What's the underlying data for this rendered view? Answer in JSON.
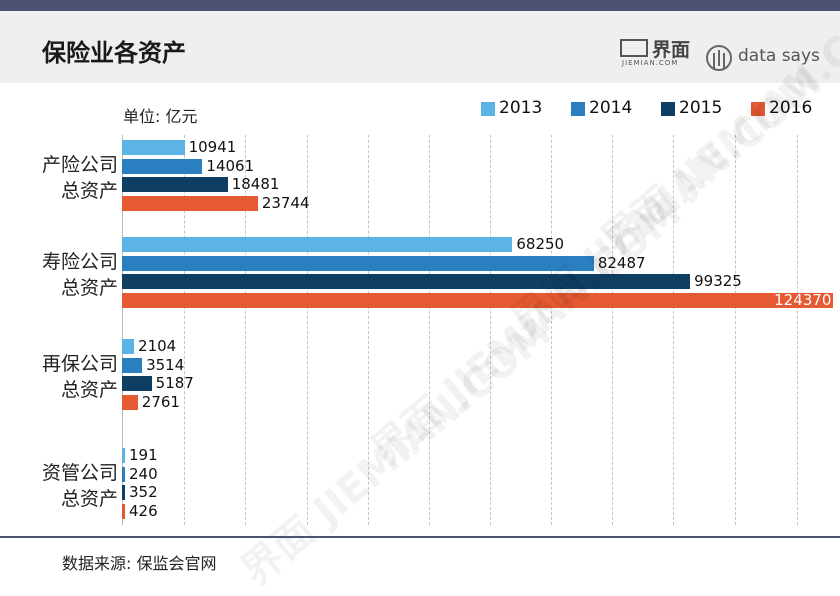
{
  "header": {
    "title": "保险业各资产",
    "brand_jiemian_cn": "界面",
    "brand_jiemian_en": "JIEMIAN.COM",
    "brand_datasays": "data says"
  },
  "colors": {
    "header_strip": "#4d5270",
    "header_bg": "#efefef"
  },
  "chart_data": {
    "type": "bar",
    "orientation": "horizontal",
    "unit_label": "单位: 亿元",
    "categories": [
      "产险公司\n总资产",
      "寿险公司\n总资产",
      "再保公司\n总资产",
      "资管公司\n总资产"
    ],
    "category_lines": [
      [
        "产险公司",
        "总资产"
      ],
      [
        "寿险公司",
        "总资产"
      ],
      [
        "再保公司",
        "总资产"
      ],
      [
        "资管公司",
        "总资产"
      ]
    ],
    "series": [
      {
        "name": "2013",
        "color": "#5bb3e6",
        "values": [
          10941,
          68250,
          2104,
          191
        ]
      },
      {
        "name": "2014",
        "color": "#2a7fc0",
        "values": [
          14061,
          82487,
          3514,
          240
        ]
      },
      {
        "name": "2015",
        "color": "#0e3e62",
        "values": [
          18481,
          99325,
          5187,
          352
        ]
      },
      {
        "name": "2016",
        "color": "#e55a32",
        "values": [
          23744,
          124370,
          2761,
          426
        ]
      }
    ],
    "value_labels": [
      [
        "10941",
        "68250",
        "2104",
        "191"
      ],
      [
        "14061",
        "82487",
        "3514",
        "240"
      ],
      [
        "18481",
        "99325",
        "5187",
        "352"
      ],
      [
        "23744",
        "124370",
        "2761",
        "426"
      ]
    ],
    "xlim": [
      0,
      125000
    ],
    "grid": true,
    "legend_position": "top-right"
  },
  "footer": {
    "source": "数据来源: 保监会官网"
  },
  "watermarks": [
    "界面 JIEMIAN.COM",
    "界面 JIEMIAN.COM",
    "界面 JIEMIAN.COM",
    "界面 JIEMIAN.COM"
  ]
}
